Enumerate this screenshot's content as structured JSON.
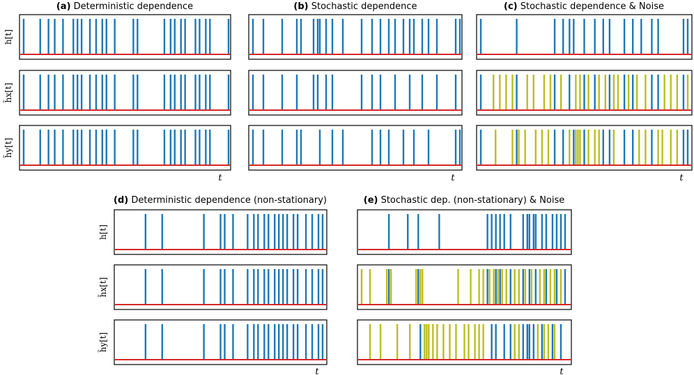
{
  "colors": {
    "signal": "#1f77b4",
    "noise": "#bcbd22",
    "baseline": "#d62728",
    "frame": "#000000"
  },
  "row_labels": {
    "h": "h[t]",
    "hx": "h̃x[t]",
    "hy": "h̃y[t]"
  },
  "time_label": "t",
  "chart_data": [
    {
      "type": "event_raster",
      "title_prefix": "(a)",
      "title": "Deterministic dependence",
      "x_range": [
        0,
        1
      ],
      "rows": [
        {
          "label": "h[t]",
          "events": [
            0.01,
            0.09,
            0.13,
            0.16,
            0.2,
            0.25,
            0.27,
            0.29,
            0.33,
            0.36,
            0.39,
            0.41,
            0.45,
            0.54,
            0.56,
            0.69,
            0.72,
            0.74,
            0.77,
            0.79,
            0.84,
            0.86,
            0.89,
            0.91,
            1.0
          ],
          "noise": []
        },
        {
          "label": "h̃x[t]",
          "events": [
            0.01,
            0.09,
            0.13,
            0.16,
            0.2,
            0.25,
            0.27,
            0.29,
            0.33,
            0.36,
            0.39,
            0.41,
            0.45,
            0.54,
            0.56,
            0.69,
            0.72,
            0.74,
            0.77,
            0.79,
            0.84,
            0.86,
            0.89,
            0.91,
            1.0
          ],
          "noise": []
        },
        {
          "label": "h̃y[t]",
          "events": [
            0.01,
            0.09,
            0.13,
            0.16,
            0.2,
            0.25,
            0.27,
            0.29,
            0.33,
            0.36,
            0.39,
            0.41,
            0.45,
            0.54,
            0.56,
            0.69,
            0.72,
            0.74,
            0.77,
            0.79,
            0.84,
            0.86,
            0.89,
            0.91,
            1.0
          ],
          "noise": []
        }
      ]
    },
    {
      "type": "event_raster",
      "title_prefix": "(b)",
      "title": "Stochastic dependence",
      "x_range": [
        0,
        1
      ],
      "rows": [
        {
          "label": "h[t]",
          "events": [
            0.01,
            0.06,
            0.15,
            0.22,
            0.24,
            0.3,
            0.32,
            0.33,
            0.36,
            0.39,
            0.44,
            0.53,
            0.58,
            0.62,
            0.66,
            0.69,
            0.73,
            0.76,
            0.78,
            0.82,
            0.85,
            0.89,
            0.98,
            1.0
          ],
          "noise": []
        },
        {
          "label": "h̃x[t]",
          "events": [
            0.01,
            0.06,
            0.15,
            0.22,
            0.3,
            0.32,
            0.36,
            0.39,
            0.53,
            0.58,
            0.62,
            0.69,
            0.76,
            0.82,
            0.89,
            0.98
          ],
          "noise": []
        },
        {
          "label": "h̃y[t]",
          "events": [
            0.01,
            0.06,
            0.15,
            0.22,
            0.24,
            0.33,
            0.39,
            0.44,
            0.58,
            0.62,
            0.66,
            0.73,
            0.78,
            0.85,
            0.98,
            1.0
          ],
          "noise": []
        }
      ]
    },
    {
      "type": "event_raster",
      "title_prefix": "(c)",
      "title": "Stochastic dependence & Noise",
      "x_range": [
        0,
        1
      ],
      "rows": [
        {
          "label": "h[t]",
          "events": [
            0.01,
            0.18,
            0.36,
            0.4,
            0.43,
            0.45,
            0.5,
            0.55,
            0.59,
            0.62,
            0.69,
            0.73,
            0.77,
            0.82,
            0.85,
            0.97,
            0.99
          ],
          "noise": []
        },
        {
          "label": "h̃x[t]",
          "events": [
            0.01,
            0.18,
            0.36,
            0.43,
            0.5,
            0.55,
            0.62,
            0.69,
            0.73,
            0.82,
            0.85,
            0.97
          ],
          "noise": [
            0.07,
            0.1,
            0.13,
            0.16,
            0.23,
            0.26,
            0.31,
            0.34,
            0.39,
            0.46,
            0.48,
            0.52,
            0.57,
            0.6,
            0.64,
            0.66,
            0.71,
            0.75,
            0.79,
            0.88,
            0.91,
            0.94,
            0.99
          ]
        },
        {
          "label": "h̃y[t]",
          "events": [
            0.01,
            0.18,
            0.36,
            0.4,
            0.45,
            0.5,
            0.59,
            0.62,
            0.69,
            0.73,
            0.82,
            0.97,
            0.99
          ],
          "noise": [
            0.08,
            0.16,
            0.19,
            0.22,
            0.27,
            0.3,
            0.33,
            0.43,
            0.46,
            0.47,
            0.48,
            0.52,
            0.55,
            0.57,
            0.64,
            0.76,
            0.79,
            0.85,
            0.87,
            0.91,
            0.94
          ]
        }
      ]
    },
    {
      "type": "event_raster",
      "title_prefix": "(d)",
      "title": "Deterministic dependence (non-stationary)",
      "x_range": [
        0,
        1
      ],
      "rows": [
        {
          "label": "h[t]",
          "events": [
            0.14,
            0.22,
            0.42,
            0.5,
            0.52,
            0.56,
            0.63,
            0.66,
            0.68,
            0.71,
            0.73,
            0.76,
            0.78,
            0.8,
            0.82,
            0.85,
            0.87,
            0.91,
            0.94,
            0.97,
            0.99
          ],
          "noise": []
        },
        {
          "label": "h̃x[t]",
          "events": [
            0.14,
            0.22,
            0.42,
            0.5,
            0.52,
            0.56,
            0.63,
            0.66,
            0.68,
            0.71,
            0.73,
            0.76,
            0.78,
            0.8,
            0.82,
            0.85,
            0.87,
            0.91,
            0.94,
            0.97,
            0.99
          ],
          "noise": []
        },
        {
          "label": "h̃y[t]",
          "events": [
            0.14,
            0.22,
            0.42,
            0.5,
            0.52,
            0.56,
            0.63,
            0.66,
            0.68,
            0.71,
            0.73,
            0.76,
            0.78,
            0.8,
            0.82,
            0.85,
            0.87,
            0.91,
            0.94,
            0.97,
            0.99
          ],
          "noise": []
        }
      ]
    },
    {
      "type": "event_raster",
      "title_prefix": "(e)",
      "title": "Stochastic dep. (non-stationary) & Noise",
      "x_range": [
        0,
        1
      ],
      "rows": [
        {
          "label": "h[t]",
          "events": [
            0.14,
            0.23,
            0.28,
            0.38,
            0.61,
            0.63,
            0.65,
            0.67,
            0.69,
            0.72,
            0.78,
            0.8,
            0.81,
            0.83,
            0.84,
            0.87,
            0.89,
            0.92,
            0.94,
            0.96,
            0.98
          ],
          "noise": []
        },
        {
          "label": "h̃x[t]",
          "events": [
            0.14,
            0.28,
            0.61,
            0.65,
            0.67,
            0.72,
            0.78,
            0.81,
            0.84,
            0.89,
            0.94,
            0.98
          ],
          "noise": [
            0.01,
            0.05,
            0.13,
            0.15,
            0.27,
            0.29,
            0.3,
            0.47,
            0.53,
            0.57,
            0.59,
            0.62,
            0.64,
            0.66,
            0.68,
            0.7,
            0.74,
            0.76,
            0.79,
            0.82,
            0.86,
            0.88,
            0.91,
            0.93,
            0.96
          ]
        },
        {
          "label": "h̃y[t]",
          "events": [
            0.29,
            0.63,
            0.65,
            0.69,
            0.72,
            0.78,
            0.8,
            0.81,
            0.83,
            0.87,
            0.92,
            0.96
          ],
          "noise": [
            0.05,
            0.1,
            0.18,
            0.24,
            0.31,
            0.32,
            0.33,
            0.35,
            0.37,
            0.4,
            0.43,
            0.46,
            0.5,
            0.52,
            0.55,
            0.57,
            0.59,
            0.74,
            0.76,
            0.85,
            0.88,
            0.9,
            0.93
          ]
        }
      ]
    }
  ]
}
